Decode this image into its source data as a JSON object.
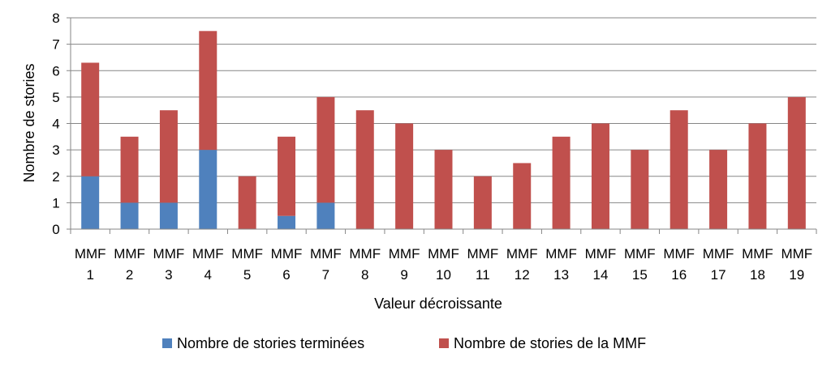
{
  "chart_data": {
    "type": "bar",
    "stacked": true,
    "categories": [
      "MMF 1",
      "MMF 2",
      "MMF 3",
      "MMF 4",
      "MMF 5",
      "MMF 6",
      "MMF 7",
      "MMF 8",
      "MMF 9",
      "MMF 10",
      "MMF 11",
      "MMF 12",
      "MMF 13",
      "MMF 14",
      "MMF 15",
      "MMF 16",
      "MMF 17",
      "MMF 18",
      "MMF 19"
    ],
    "series": [
      {
        "name": "Nombre de stories terminées",
        "color": "#4f81bd",
        "values": [
          2,
          1,
          1,
          3,
          0,
          0.5,
          1,
          0,
          0,
          0,
          0,
          0,
          0,
          0,
          0,
          0,
          0,
          0,
          0
        ]
      },
      {
        "name": "Nombre de stories de la MMF",
        "color": "#c0504d",
        "values": [
          4.3,
          2.5,
          3.5,
          4.5,
          2,
          3,
          4,
          4.5,
          4,
          3,
          2,
          2.5,
          3.5,
          4,
          3,
          4.5,
          3,
          4,
          5
        ]
      }
    ],
    "xlabel": "Valeur décroissante",
    "ylabel": "Nombre de stories",
    "ylim": [
      0,
      8
    ],
    "yticks": [
      "0",
      "1",
      "2",
      "3",
      "4",
      "5",
      "6",
      "7",
      "8"
    ],
    "grid": true,
    "legend_position": "bottom"
  }
}
